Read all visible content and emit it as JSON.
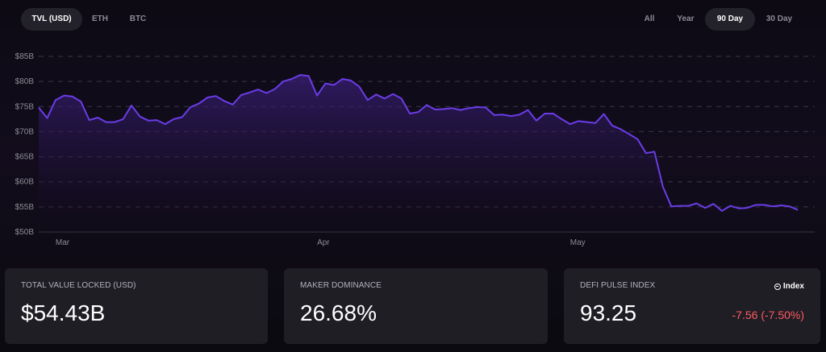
{
  "toolbar": {
    "left_tabs": [
      {
        "label": "TVL (USD)",
        "active": true
      },
      {
        "label": "ETH",
        "active": false
      },
      {
        "label": "BTC",
        "active": false
      }
    ],
    "right_tabs": [
      {
        "label": "All",
        "active": false
      },
      {
        "label": "Year",
        "active": false
      },
      {
        "label": "90 Day",
        "active": true
      },
      {
        "label": "30 Day",
        "active": false
      }
    ]
  },
  "colors": {
    "line": "#6b3ce8",
    "fill_top": "#3a1f7a",
    "grid": "#3a3845",
    "axis_text": "#8c8a94",
    "negative": "#ff5a5f"
  },
  "chart_data": {
    "type": "area",
    "title": "",
    "xlabel": "",
    "ylabel": "",
    "y_tick_labels": [
      "$50B",
      "$55B",
      "$60B",
      "$65B",
      "$70B",
      "$75B",
      "$80B",
      "$85B"
    ],
    "y_ticks": [
      50,
      55,
      60,
      65,
      70,
      75,
      80,
      85
    ],
    "ylim": [
      50,
      85
    ],
    "x_tick_labels": [
      {
        "label": "Mar",
        "day": 2
      },
      {
        "label": "Apr",
        "day": 33
      },
      {
        "label": "May",
        "day": 63
      }
    ],
    "xlim": [
      0,
      92
    ],
    "grid": true,
    "series": [
      {
        "name": "",
        "values": [
          74.8,
          72.7,
          76.3,
          77.2,
          77.0,
          76.0,
          72.3,
          72.8,
          71.9,
          71.9,
          72.5,
          75.2,
          73.0,
          72.2,
          72.3,
          71.5,
          72.5,
          72.9,
          74.9,
          75.6,
          76.8,
          77.1,
          76.1,
          75.4,
          77.3,
          77.8,
          78.4,
          77.7,
          78.5,
          80.0,
          80.5,
          81.3,
          81.1,
          77.2,
          79.6,
          79.3,
          80.5,
          80.2,
          79.0,
          76.3,
          77.4,
          76.6,
          77.5,
          76.6,
          73.6,
          73.9,
          75.3,
          74.4,
          74.5,
          74.7,
          74.3,
          74.7,
          74.9,
          74.8,
          73.3,
          73.4,
          73.1,
          73.4,
          74.3,
          72.2,
          73.6,
          73.6,
          72.5,
          71.5,
          72.1,
          71.9,
          71.7,
          73.5,
          71.2,
          70.5,
          69.5,
          68.5,
          65.7,
          66.0,
          59.0,
          55.1,
          55.2,
          55.2,
          55.7,
          54.8,
          55.6,
          54.2,
          55.2,
          54.7,
          54.8,
          55.4,
          55.4,
          55.1,
          55.3,
          55.1,
          54.4
        ]
      }
    ]
  },
  "cards": [
    {
      "label": "TOTAL VALUE LOCKED (USD)",
      "value": "$54.43B"
    },
    {
      "label": "MAKER DOMINANCE",
      "value": "26.68%"
    },
    {
      "label": "DEFI PULSE INDEX",
      "value": "93.25",
      "badge": "Index",
      "change": "-7.56  (-7.50%)"
    }
  ]
}
